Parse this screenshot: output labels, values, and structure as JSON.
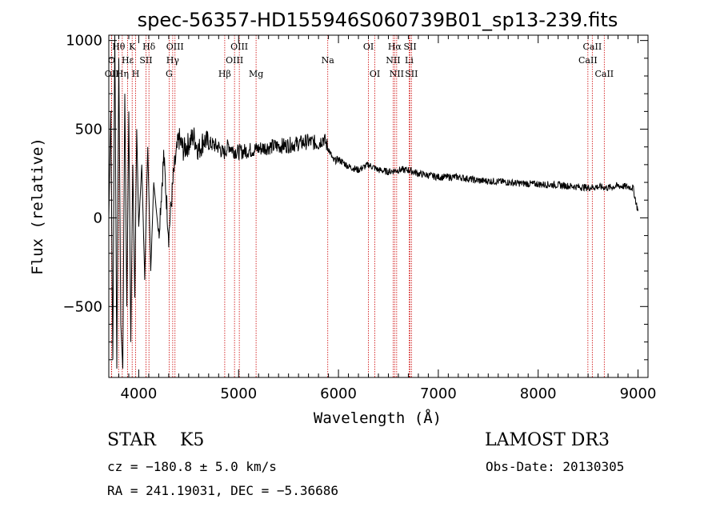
{
  "chart_data": {
    "type": "line",
    "title": "spec-56357-HD155946S060739B01_sp13-239.fits",
    "xlabel": "Wavelength (Å)",
    "ylabel": "Flux (relative)",
    "xlim": [
      3700,
      9100
    ],
    "ylim": [
      -900,
      1030
    ],
    "xticks": [
      4000,
      5000,
      6000,
      7000,
      8000,
      9000
    ],
    "yticks": [
      -500,
      0,
      500,
      1000
    ],
    "series": [
      {
        "name": "flux",
        "x": [
          3700,
          3720,
          3740,
          3760,
          3780,
          3800,
          3820,
          3840,
          3860,
          3880,
          3900,
          3920,
          3940,
          3960,
          3980,
          4000,
          4030,
          4060,
          4090,
          4120,
          4150,
          4200,
          4250,
          4300,
          4350,
          4400,
          4450,
          4500,
          4550,
          4600,
          4650,
          4700,
          4750,
          4800,
          4850,
          4900,
          4950,
          5000,
          5100,
          5200,
          5300,
          5400,
          5500,
          5600,
          5700,
          5800,
          5850,
          5900,
          5950,
          6000,
          6100,
          6200,
          6300,
          6400,
          6500,
          6600,
          6700,
          6800,
          6900,
          7000,
          7200,
          7400,
          7600,
          7800,
          8000,
          8200,
          8400,
          8500,
          8600,
          8700,
          8800,
          8900,
          8950,
          8990,
          9000
        ],
        "y": [
          0,
          600,
          -800,
          1100,
          -850,
          900,
          -600,
          -850,
          700,
          -500,
          600,
          -700,
          300,
          -450,
          500,
          -50,
          300,
          -350,
          400,
          -300,
          200,
          -100,
          350,
          -100,
          250,
          450,
          380,
          420,
          460,
          380,
          440,
          420,
          410,
          400,
          360,
          410,
          380,
          370,
          380,
          390,
          400,
          405,
          410,
          420,
          430,
          420,
          450,
          390,
          320,
          330,
          290,
          270,
          300,
          270,
          260,
          270,
          270,
          250,
          240,
          230,
          230,
          210,
          205,
          195,
          190,
          185,
          175,
          170,
          175,
          170,
          180,
          175,
          170,
          60,
          50
        ]
      }
    ],
    "line_markers": [
      {
        "label": "Hθ",
        "x": 3798,
        "row": 1
      },
      {
        "label": "K",
        "x": 3934,
        "row": 1
      },
      {
        "label": "Hδ",
        "x": 4102,
        "row": 1
      },
      {
        "label": "OIII",
        "x": 4363,
        "row": 1
      },
      {
        "label": "OIII",
        "x": 5007,
        "row": 1
      },
      {
        "label": "OI",
        "x": 6300,
        "row": 1
      },
      {
        "label": "Hα",
        "x": 6563,
        "row": 1
      },
      {
        "label": "SII",
        "x": 6717,
        "row": 1
      },
      {
        "label": "CaII",
        "x": 8542,
        "row": 1
      },
      {
        "label": "O",
        "x": 3727,
        "row": 2
      },
      {
        "label": "Hε",
        "x": 3889,
        "row": 2
      },
      {
        "label": "SII",
        "x": 4072,
        "row": 2
      },
      {
        "label": "Hγ",
        "x": 4340,
        "row": 2
      },
      {
        "label": "OIII",
        "x": 4959,
        "row": 2
      },
      {
        "label": "Na",
        "x": 5893,
        "row": 2
      },
      {
        "label": "NII",
        "x": 6548,
        "row": 2
      },
      {
        "label": "Li",
        "x": 6708,
        "row": 2
      },
      {
        "label": "CaII",
        "x": 8498,
        "row": 2
      },
      {
        "label": "OII",
        "x": 3729,
        "row": 3
      },
      {
        "label": "Hη",
        "x": 3835,
        "row": 3
      },
      {
        "label": "H",
        "x": 3969,
        "row": 3
      },
      {
        "label": "G",
        "x": 4304,
        "row": 3
      },
      {
        "label": "Hβ",
        "x": 4861,
        "row": 3
      },
      {
        "label": "Mg",
        "x": 5175,
        "row": 3
      },
      {
        "label": "OI",
        "x": 6364,
        "row": 3
      },
      {
        "label": "NII",
        "x": 6583,
        "row": 3
      },
      {
        "label": "SII",
        "x": 6731,
        "row": 3
      },
      {
        "label": "CaII",
        "x": 8662,
        "row": 3
      }
    ]
  },
  "info": {
    "class": "STAR",
    "subclass": "K5",
    "survey": "LAMOST DR3",
    "cz": "cz = −180.8 ± 5.0 km/s",
    "obs_date": "Obs-Date: 20130305",
    "radec": "RA = 241.19031, DEC =  −5.36686"
  },
  "colors": {
    "marker": "#cc0000",
    "line": "#000000",
    "axis": "#000000"
  }
}
